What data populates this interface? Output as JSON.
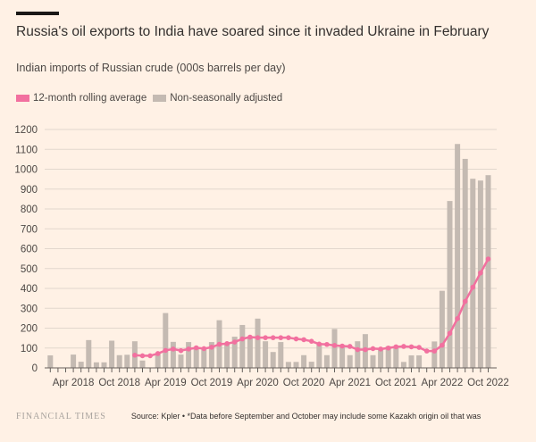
{
  "header": {
    "title": "Russia's oil exports to India have soared since it invaded Ukraine in February",
    "subtitle": "Indian imports of Russian crude (000s barrels per day)"
  },
  "footer": {
    "logo": "FINANCIAL TIMES",
    "source": "Source: Kpler • *Data before September and October may include some Kazakh origin oil that was"
  },
  "colors": {
    "background": "#FFF1E5",
    "line": "#F2709F",
    "bars": "#C4BAB2",
    "grid": "#E2D7CD"
  },
  "chart_data": {
    "type": "bar",
    "title": "Russia's oil exports to India have soared since it invaded Ukraine in February",
    "ylabel": "Indian imports of Russian crude (000s barrels per day)",
    "ylim": [
      0,
      1200
    ],
    "yticks": [
      0,
      100,
      200,
      300,
      400,
      500,
      600,
      700,
      800,
      900,
      1000,
      1100,
      1200
    ],
    "xtick_labels": [
      "Apr 2018",
      "Oct 2018",
      "Apr 2019",
      "Oct 2019",
      "Apr 2020",
      "Oct 2020",
      "Apr 2021",
      "Oct 2021",
      "Apr 2022",
      "Oct 2022"
    ],
    "xtick_months": [
      3,
      9,
      15,
      21,
      27,
      33,
      39,
      45,
      51,
      57
    ],
    "legend": [
      "12-month rolling average",
      "Non-seasonally adjusted"
    ],
    "legend_position": "top-left",
    "grid": true,
    "months_start": "Jan 2018",
    "series": [
      {
        "name": "Non-seasonally adjusted",
        "type": "bar",
        "values": [
          63,
          0,
          0,
          67,
          31,
          140,
          28,
          28,
          137,
          64,
          66,
          134,
          37,
          0,
          70,
          276,
          131,
          67,
          130,
          105,
          100,
          130,
          240,
          120,
          157,
          216,
          150,
          248,
          134,
          80,
          130,
          30,
          30,
          64,
          31,
          120,
          64,
          196,
          105,
          64,
          134,
          170,
          64,
          97,
          109,
          109,
          30,
          63,
          63,
          0,
          133,
          388,
          840,
          1127,
          1052,
          952,
          943,
          970
        ]
      },
      {
        "name": "12-month rolling average",
        "type": "line",
        "start_month": 11,
        "values": [
          64,
          61,
          61,
          72,
          88,
          95,
          87,
          95,
          101,
          97,
          104,
          119,
          122,
          130,
          146,
          155,
          152,
          152,
          152,
          152,
          152,
          146,
          142,
          134,
          120,
          118,
          113,
          110,
          108,
          92,
          92,
          97,
          95,
          100,
          106,
          108,
          106,
          103,
          85,
          85,
          114,
          174,
          248,
          335,
          406,
          478,
          548
        ]
      }
    ]
  }
}
